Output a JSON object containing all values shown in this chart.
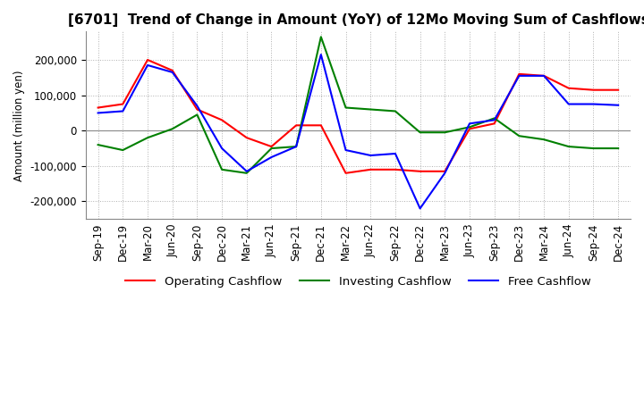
{
  "title": "[6701]  Trend of Change in Amount (YoY) of 12Mo Moving Sum of Cashflows",
  "ylabel": "Amount (million yen)",
  "ylim": [
    -250000,
    280000
  ],
  "yticks": [
    -200000,
    -100000,
    0,
    100000,
    200000
  ],
  "x_labels": [
    "Sep-19",
    "Dec-19",
    "Mar-20",
    "Jun-20",
    "Sep-20",
    "Dec-20",
    "Mar-21",
    "Jun-21",
    "Sep-21",
    "Dec-21",
    "Mar-22",
    "Jun-22",
    "Sep-22",
    "Dec-22",
    "Mar-23",
    "Jun-23",
    "Sep-23",
    "Dec-23",
    "Mar-24",
    "Jun-24",
    "Sep-24",
    "Dec-24"
  ],
  "operating": [
    65000,
    75000,
    200000,
    170000,
    60000,
    30000,
    -20000,
    -45000,
    15000,
    15000,
    -120000,
    -110000,
    -110000,
    -115000,
    -115000,
    5000,
    20000,
    160000,
    155000,
    120000,
    115000,
    115000
  ],
  "investing": [
    -40000,
    -55000,
    -20000,
    5000,
    45000,
    -110000,
    -120000,
    -50000,
    -45000,
    265000,
    65000,
    60000,
    55000,
    -5000,
    -5000,
    10000,
    35000,
    -15000,
    -25000,
    -45000,
    -50000,
    -50000
  ],
  "free": [
    50000,
    55000,
    185000,
    165000,
    70000,
    -50000,
    -115000,
    -75000,
    -45000,
    215000,
    -55000,
    -70000,
    -65000,
    -220000,
    -120000,
    20000,
    30000,
    155000,
    155000,
    75000,
    75000,
    72000
  ],
  "operating_color": "#ff0000",
  "investing_color": "#008000",
  "free_color": "#0000ff",
  "grid_color": "#b0b0b0",
  "bg_color": "#ffffff",
  "title_fontsize": 11,
  "axis_fontsize": 8.5,
  "legend_fontsize": 9.5
}
